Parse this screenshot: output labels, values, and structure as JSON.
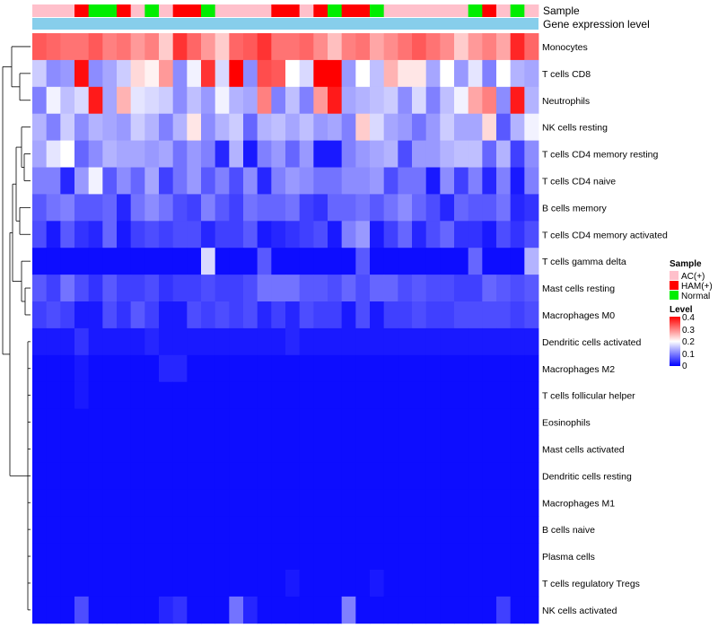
{
  "chart_data": {
    "type": "heatmap",
    "title": "",
    "annotation_tracks": [
      "Sample",
      "Gene expression level"
    ],
    "sample_legend": {
      "title": "Sample",
      "entries": [
        {
          "label": "AC(+)",
          "color": "#ffc0cb"
        },
        {
          "label": "HAM(+)",
          "color": "#ff0000"
        },
        {
          "label": "Normal",
          "color": "#00ee00"
        }
      ]
    },
    "level_legend": {
      "title": "Level",
      "ticks": [
        "0.4",
        "0.3",
        "0.2",
        "0.1",
        "0"
      ],
      "range": [
        0,
        0.4
      ],
      "colors": [
        "#0000ff",
        "#ffffff",
        "#ff0000"
      ]
    },
    "expression_color": "#87ceeb",
    "samples": [
      "P",
      "P",
      "P",
      "H",
      "N",
      "N",
      "H",
      "P",
      "N",
      "P",
      "H",
      "H",
      "N",
      "P",
      "P",
      "P",
      "P",
      "H",
      "H",
      "P",
      "H",
      "N",
      "H",
      "H",
      "N",
      "P",
      "P",
      "P",
      "P",
      "P",
      "P",
      "N",
      "H",
      "P",
      "N",
      "P"
    ],
    "rows": [
      {
        "name": "Monocytes",
        "values": [
          0.33,
          0.32,
          0.31,
          0.31,
          0.33,
          0.3,
          0.31,
          0.28,
          0.3,
          0.24,
          0.36,
          0.32,
          0.28,
          0.24,
          0.32,
          0.33,
          0.36,
          0.31,
          0.31,
          0.32,
          0.29,
          0.25,
          0.3,
          0.31,
          0.27,
          0.29,
          0.31,
          0.33,
          0.31,
          0.29,
          0.24,
          0.28,
          0.3,
          0.27,
          0.37,
          0.32
        ]
      },
      {
        "name": "T cells CD8",
        "values": [
          0.16,
          0.11,
          0.12,
          0.39,
          0.11,
          0.13,
          0.16,
          0.23,
          0.21,
          0.28,
          0.11,
          0.19,
          0.36,
          0.17,
          0.4,
          0.11,
          0.34,
          0.33,
          0.2,
          0.17,
          0.4,
          0.4,
          0.12,
          0.2,
          0.15,
          0.26,
          0.22,
          0.22,
          0.13,
          0.2,
          0.12,
          0.18,
          0.1,
          0.2,
          0.14,
          0.13
        ]
      },
      {
        "name": "Neutrophils",
        "values": [
          0.1,
          0.19,
          0.15,
          0.17,
          0.38,
          0.13,
          0.26,
          0.18,
          0.17,
          0.16,
          0.11,
          0.15,
          0.12,
          0.19,
          0.14,
          0.13,
          0.3,
          0.1,
          0.15,
          0.1,
          0.28,
          0.38,
          0.13,
          0.14,
          0.15,
          0.16,
          0.11,
          0.17,
          0.1,
          0.15,
          0.19,
          0.27,
          0.3,
          0.11,
          0.38,
          0.14
        ]
      },
      {
        "name": "NK cells resting",
        "values": [
          0.14,
          0.1,
          0.16,
          0.11,
          0.14,
          0.13,
          0.12,
          0.16,
          0.14,
          0.1,
          0.14,
          0.22,
          0.11,
          0.14,
          0.16,
          0.08,
          0.14,
          0.15,
          0.13,
          0.15,
          0.12,
          0.13,
          0.1,
          0.24,
          0.17,
          0.13,
          0.12,
          0.09,
          0.12,
          0.16,
          0.13,
          0.13,
          0.23,
          0.07,
          0.14,
          0.19
        ]
      },
      {
        "name": "T cells CD4 memory resting",
        "values": [
          0.13,
          0.18,
          0.2,
          0.08,
          0.11,
          0.14,
          0.13,
          0.13,
          0.12,
          0.13,
          0.09,
          0.12,
          0.1,
          0.03,
          0.14,
          0.02,
          0.1,
          0.12,
          0.08,
          0.12,
          0.02,
          0.02,
          0.1,
          0.12,
          0.13,
          0.14,
          0.06,
          0.12,
          0.12,
          0.14,
          0.15,
          0.15,
          0.08,
          0.14,
          0.05,
          0.11
        ]
      },
      {
        "name": "T cells CD4 naive",
        "values": [
          0.1,
          0.1,
          0.03,
          0.12,
          0.19,
          0.07,
          0.11,
          0.08,
          0.13,
          0.05,
          0.09,
          0.12,
          0.07,
          0.1,
          0.06,
          0.11,
          0.03,
          0.1,
          0.12,
          0.11,
          0.09,
          0.09,
          0.11,
          0.11,
          0.12,
          0.06,
          0.09,
          0.09,
          0.02,
          0.11,
          0.05,
          0.1,
          0.03,
          0.1,
          0.02,
          0.1
        ]
      },
      {
        "name": "B cells memory",
        "values": [
          0.07,
          0.09,
          0.1,
          0.07,
          0.07,
          0.08,
          0.03,
          0.09,
          0.11,
          0.09,
          0.06,
          0.05,
          0.1,
          0.07,
          0.05,
          0.09,
          0.08,
          0.08,
          0.09,
          0.05,
          0.04,
          0.08,
          0.08,
          0.09,
          0.07,
          0.09,
          0.11,
          0.08,
          0.06,
          0.03,
          0.08,
          0.07,
          0.07,
          0.09,
          0.03,
          0.04
        ]
      },
      {
        "name": "T cells CD4 memory activated",
        "values": [
          0.06,
          0.02,
          0.07,
          0.04,
          0.03,
          0.08,
          0.02,
          0.05,
          0.06,
          0.05,
          0.06,
          0.06,
          0.03,
          0.05,
          0.05,
          0.07,
          0.02,
          0.03,
          0.04,
          0.05,
          0.06,
          0.02,
          0.1,
          0.12,
          0.02,
          0.05,
          0.08,
          0.03,
          0.06,
          0.08,
          0.04,
          0.04,
          0.02,
          0.06,
          0.04,
          0.06
        ]
      },
      {
        "name": "T cells gamma delta",
        "values": [
          0.01,
          0.01,
          0.01,
          0.01,
          0.01,
          0.01,
          0.01,
          0.01,
          0.01,
          0.01,
          0.01,
          0.01,
          0.17,
          0.01,
          0.01,
          0.01,
          0.07,
          0.01,
          0.01,
          0.01,
          0.01,
          0.01,
          0.01,
          0.07,
          0.01,
          0.01,
          0.01,
          0.01,
          0.01,
          0.01,
          0.01,
          0.08,
          0.01,
          0.01,
          0.01,
          0.14
        ]
      },
      {
        "name": "Mast cells resting",
        "values": [
          0.07,
          0.05,
          0.09,
          0.06,
          0.04,
          0.07,
          0.05,
          0.05,
          0.06,
          0.04,
          0.05,
          0.05,
          0.06,
          0.05,
          0.05,
          0.06,
          0.09,
          0.09,
          0.09,
          0.07,
          0.07,
          0.06,
          0.08,
          0.06,
          0.08,
          0.08,
          0.06,
          0.07,
          0.06,
          0.06,
          0.05,
          0.05,
          0.08,
          0.07,
          0.06,
          0.07
        ]
      },
      {
        "name": "Macrophages M0",
        "values": [
          0.05,
          0.06,
          0.05,
          0.02,
          0.02,
          0.06,
          0.04,
          0.07,
          0.05,
          0.02,
          0.02,
          0.06,
          0.05,
          0.06,
          0.05,
          0.06,
          0.03,
          0.05,
          0.03,
          0.06,
          0.05,
          0.05,
          0.02,
          0.06,
          0.02,
          0.05,
          0.05,
          0.06,
          0.05,
          0.05,
          0.06,
          0.06,
          0.06,
          0.06,
          0.05,
          0.06
        ]
      },
      {
        "name": "Dendritic cells activated",
        "values": [
          0.02,
          0.02,
          0.02,
          0.04,
          0.02,
          0.02,
          0.02,
          0.02,
          0.03,
          0.02,
          0.02,
          0.02,
          0.02,
          0.02,
          0.02,
          0.02,
          0.02,
          0.02,
          0.03,
          0.02,
          0.02,
          0.02,
          0.02,
          0.02,
          0.02,
          0.02,
          0.02,
          0.02,
          0.02,
          0.02,
          0.02,
          0.02,
          0.02,
          0.02,
          0.02,
          0.02
        ]
      },
      {
        "name": "Macrophages M2",
        "values": [
          0.01,
          0.01,
          0.01,
          0.02,
          0.01,
          0.01,
          0.01,
          0.01,
          0.01,
          0.03,
          0.03,
          0.01,
          0.01,
          0.01,
          0.01,
          0.01,
          0.01,
          0.01,
          0.01,
          0.01,
          0.01,
          0.01,
          0.01,
          0.01,
          0.01,
          0.01,
          0.01,
          0.01,
          0.01,
          0.01,
          0.01,
          0.01,
          0.01,
          0.01,
          0.01,
          0.01
        ]
      },
      {
        "name": "T cells follicular helper",
        "values": [
          0.01,
          0.01,
          0.01,
          0.02,
          0.01,
          0.01,
          0.01,
          0.01,
          0.01,
          0.01,
          0.01,
          0.01,
          0.01,
          0.01,
          0.01,
          0.01,
          0.01,
          0.01,
          0.01,
          0.01,
          0.01,
          0.01,
          0.01,
          0.01,
          0.01,
          0.01,
          0.01,
          0.01,
          0.01,
          0.01,
          0.01,
          0.01,
          0.01,
          0.01,
          0.01,
          0.01
        ]
      },
      {
        "name": "Eosinophils",
        "values": [
          0.01,
          0.01,
          0.01,
          0.01,
          0.01,
          0.01,
          0.01,
          0.01,
          0.01,
          0.01,
          0.01,
          0.01,
          0.01,
          0.01,
          0.01,
          0.01,
          0.01,
          0.01,
          0.01,
          0.01,
          0.01,
          0.01,
          0.01,
          0.01,
          0.01,
          0.01,
          0.01,
          0.01,
          0.01,
          0.01,
          0.01,
          0.01,
          0.01,
          0.01,
          0.01,
          0.01
        ]
      },
      {
        "name": "Mast cells activated",
        "values": [
          0.01,
          0.01,
          0.01,
          0.01,
          0.01,
          0.01,
          0.01,
          0.01,
          0.01,
          0.01,
          0.01,
          0.01,
          0.01,
          0.01,
          0.01,
          0.01,
          0.01,
          0.01,
          0.01,
          0.01,
          0.01,
          0.01,
          0.01,
          0.01,
          0.01,
          0.01,
          0.01,
          0.01,
          0.01,
          0.01,
          0.01,
          0.01,
          0.01,
          0.01,
          0.01,
          0.01
        ]
      },
      {
        "name": "Dendritic cells resting",
        "values": [
          0.01,
          0.01,
          0.01,
          0.01,
          0.01,
          0.01,
          0.01,
          0.01,
          0.01,
          0.01,
          0.01,
          0.01,
          0.01,
          0.01,
          0.01,
          0.01,
          0.01,
          0.01,
          0.01,
          0.01,
          0.01,
          0.01,
          0.01,
          0.01,
          0.01,
          0.01,
          0.01,
          0.01,
          0.01,
          0.01,
          0.01,
          0.01,
          0.01,
          0.01,
          0.01,
          0.01
        ]
      },
      {
        "name": "Macrophages M1",
        "values": [
          0.01,
          0.01,
          0.01,
          0.01,
          0.01,
          0.01,
          0.01,
          0.01,
          0.01,
          0.01,
          0.01,
          0.01,
          0.01,
          0.01,
          0.01,
          0.01,
          0.01,
          0.01,
          0.01,
          0.01,
          0.01,
          0.01,
          0.01,
          0.01,
          0.01,
          0.01,
          0.01,
          0.01,
          0.01,
          0.01,
          0.01,
          0.01,
          0.01,
          0.01,
          0.01,
          0.01
        ]
      },
      {
        "name": "B cells naive",
        "values": [
          0.01,
          0.01,
          0.01,
          0.01,
          0.01,
          0.01,
          0.01,
          0.01,
          0.01,
          0.01,
          0.01,
          0.01,
          0.01,
          0.01,
          0.01,
          0.01,
          0.01,
          0.01,
          0.01,
          0.01,
          0.01,
          0.01,
          0.01,
          0.01,
          0.01,
          0.01,
          0.01,
          0.01,
          0.01,
          0.01,
          0.01,
          0.01,
          0.01,
          0.01,
          0.01,
          0.01
        ]
      },
      {
        "name": "Plasma cells",
        "values": [
          0.01,
          0.01,
          0.01,
          0.01,
          0.01,
          0.01,
          0.01,
          0.01,
          0.01,
          0.01,
          0.01,
          0.01,
          0.01,
          0.01,
          0.01,
          0.01,
          0.01,
          0.01,
          0.01,
          0.01,
          0.01,
          0.01,
          0.01,
          0.01,
          0.01,
          0.01,
          0.01,
          0.01,
          0.01,
          0.01,
          0.01,
          0.01,
          0.01,
          0.01,
          0.01,
          0.01
        ]
      },
      {
        "name": "T cells regulatory  Tregs",
        "values": [
          0.01,
          0.01,
          0.01,
          0.01,
          0.01,
          0.01,
          0.01,
          0.01,
          0.01,
          0.01,
          0.01,
          0.01,
          0.01,
          0.01,
          0.01,
          0.01,
          0.01,
          0.01,
          0.02,
          0.01,
          0.01,
          0.01,
          0.01,
          0.01,
          0.02,
          0.01,
          0.01,
          0.01,
          0.01,
          0.01,
          0.01,
          0.01,
          0.01,
          0.01,
          0.01,
          0.01
        ]
      },
      {
        "name": "NK cells activated",
        "values": [
          0.01,
          0.01,
          0.01,
          0.06,
          0.01,
          0.01,
          0.01,
          0.01,
          0.01,
          0.03,
          0.04,
          0.01,
          0.01,
          0.01,
          0.09,
          0.03,
          0.01,
          0.01,
          0.01,
          0.01,
          0.01,
          0.01,
          0.1,
          0.01,
          0.01,
          0.01,
          0.01,
          0.01,
          0.01,
          0.01,
          0.01,
          0.01,
          0.01,
          0.05,
          0.01,
          0.01
        ]
      }
    ]
  }
}
